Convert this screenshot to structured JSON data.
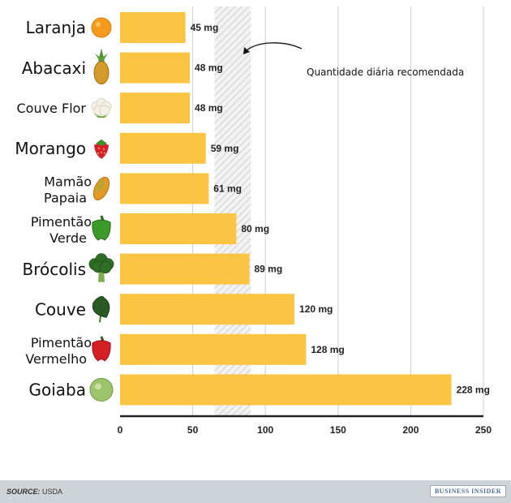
{
  "chart_data": {
    "type": "bar",
    "orientation": "horizontal",
    "categories": [
      [
        "Laranja"
      ],
      [
        "Abacaxi"
      ],
      [
        "Couve Flor"
      ],
      [
        "Morango"
      ],
      [
        "Mamão",
        "Papaia"
      ],
      [
        "Pimentão",
        "Verde"
      ],
      [
        "Brócolis"
      ],
      [
        "Couve"
      ],
      [
        "Pimentão",
        "Vermelho"
      ],
      [
        "Goiaba"
      ]
    ],
    "values": [
      45,
      48,
      48,
      59,
      61,
      80,
      89,
      120,
      128,
      228
    ],
    "value_labels": [
      "45 mg",
      "48 mg",
      "48 mg",
      "59 mg",
      "61 mg",
      "80 mg",
      "89 mg",
      "120 mg",
      "128 mg",
      "228 mg"
    ],
    "icons": [
      "orange-icon",
      "pineapple-icon",
      "cauliflower-icon",
      "strawberry-icon",
      "papaya-icon",
      "green-pepper-icon",
      "broccoli-icon",
      "kale-icon",
      "red-pepper-icon",
      "guava-icon"
    ],
    "xlim": [
      0,
      250
    ],
    "xticks": [
      0,
      50,
      100,
      150,
      200,
      250
    ],
    "grid": true,
    "bar_color": "#fcc443",
    "recommended_band": [
      65,
      90
    ],
    "annotation": "Quantidade diária recomendada"
  },
  "footer": {
    "source_label": "SOURCE:",
    "source_value": "USDA",
    "brand": "BUSINESS INSIDER"
  }
}
